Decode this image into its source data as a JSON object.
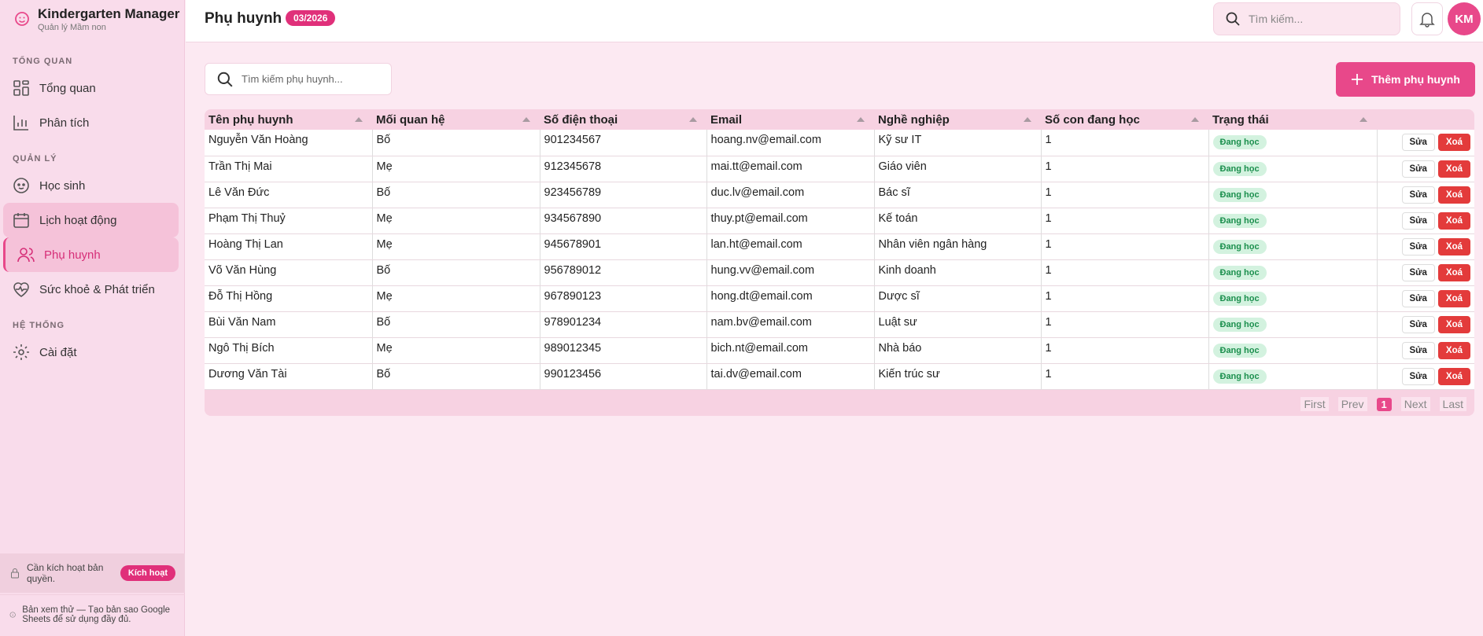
{
  "brand": {
    "title": "Kindergarten Manager",
    "subtitle": "Quản lý Mầm non"
  },
  "nav": [
    {
      "section": "TỔNG QUAN",
      "items": [
        "Tổng quan",
        "Phân tích"
      ]
    },
    {
      "section": "QUẢN LÝ",
      "items": [
        "Học sinh",
        "Lịch hoạt động",
        "Phụ huynh",
        "Sức khoẻ & Phát triển"
      ]
    },
    {
      "section": "HỆ THỐNG",
      "items": [
        "Cài đặt"
      ]
    }
  ],
  "header": {
    "title": "Phụ huynh",
    "badge": "03/2026",
    "search_placeholder": "Tìm kiếm...",
    "avatar": "KM"
  },
  "toolbar": {
    "search_placeholder": "Tìm kiếm phụ huynh...",
    "add_button": "Thêm phụ huynh"
  },
  "table": {
    "columns": [
      "Tên phụ huynh",
      "Mối quan hệ",
      "Số điện thoại",
      "Email",
      "Nghề nghiệp",
      "Số con đang học",
      "Trạng thái"
    ],
    "rows": [
      [
        "Nguyễn Văn Hoàng",
        "Bố",
        "901234567",
        "hoang.nv@email.com",
        "Kỹ sư IT",
        1,
        "Đang học"
      ],
      [
        "Trần Thị Mai",
        "Mẹ",
        "912345678",
        "mai.tt@email.com",
        "Giáo viên",
        1,
        "Đang học"
      ],
      [
        "Lê Văn Đức",
        "Bố",
        "923456789",
        "duc.lv@email.com",
        "Bác sĩ",
        1,
        "Đang học"
      ],
      [
        "Phạm Thị Thuỷ",
        "Mẹ",
        "934567890",
        "thuy.pt@email.com",
        "Kế toán",
        1,
        "Đang học"
      ],
      [
        "Hoàng Thị Lan",
        "Mẹ",
        "945678901",
        "lan.ht@email.com",
        "Nhân viên ngân hàng",
        1,
        "Đang học"
      ],
      [
        "Võ Văn Hùng",
        "Bố",
        "956789012",
        "hung.vv@email.com",
        "Kinh doanh",
        1,
        "Đang học"
      ],
      [
        "Đỗ Thị Hồng",
        "Mẹ",
        "967890123",
        "hong.dt@email.com",
        "Dược sĩ",
        1,
        "Đang học"
      ],
      [
        "Bùi Văn Nam",
        "Bố",
        "978901234",
        "nam.bv@email.com",
        "Luật sư",
        1,
        "Đang học"
      ],
      [
        "Ngô Thị Bích",
        "Mẹ",
        "989012345",
        "bich.nt@email.com",
        "Nhà báo",
        1,
        "Đang học"
      ],
      [
        "Dương Văn Tài",
        "Bố",
        "990123456",
        "tai.dv@email.com",
        "Kiến trúc sư",
        1,
        "Đang học"
      ]
    ],
    "actions": [
      "Sửa",
      "Xoá"
    ]
  },
  "pagination": [
    "First",
    "Prev",
    "1",
    "Next",
    "Last"
  ],
  "notices": {
    "activation": "Cần kích hoạt bản quyền.",
    "activate_button": "Kích hoạt",
    "preview": "Bản xem thử — Tạo bản sao Google Sheets để sử dụng đầy đủ."
  }
}
